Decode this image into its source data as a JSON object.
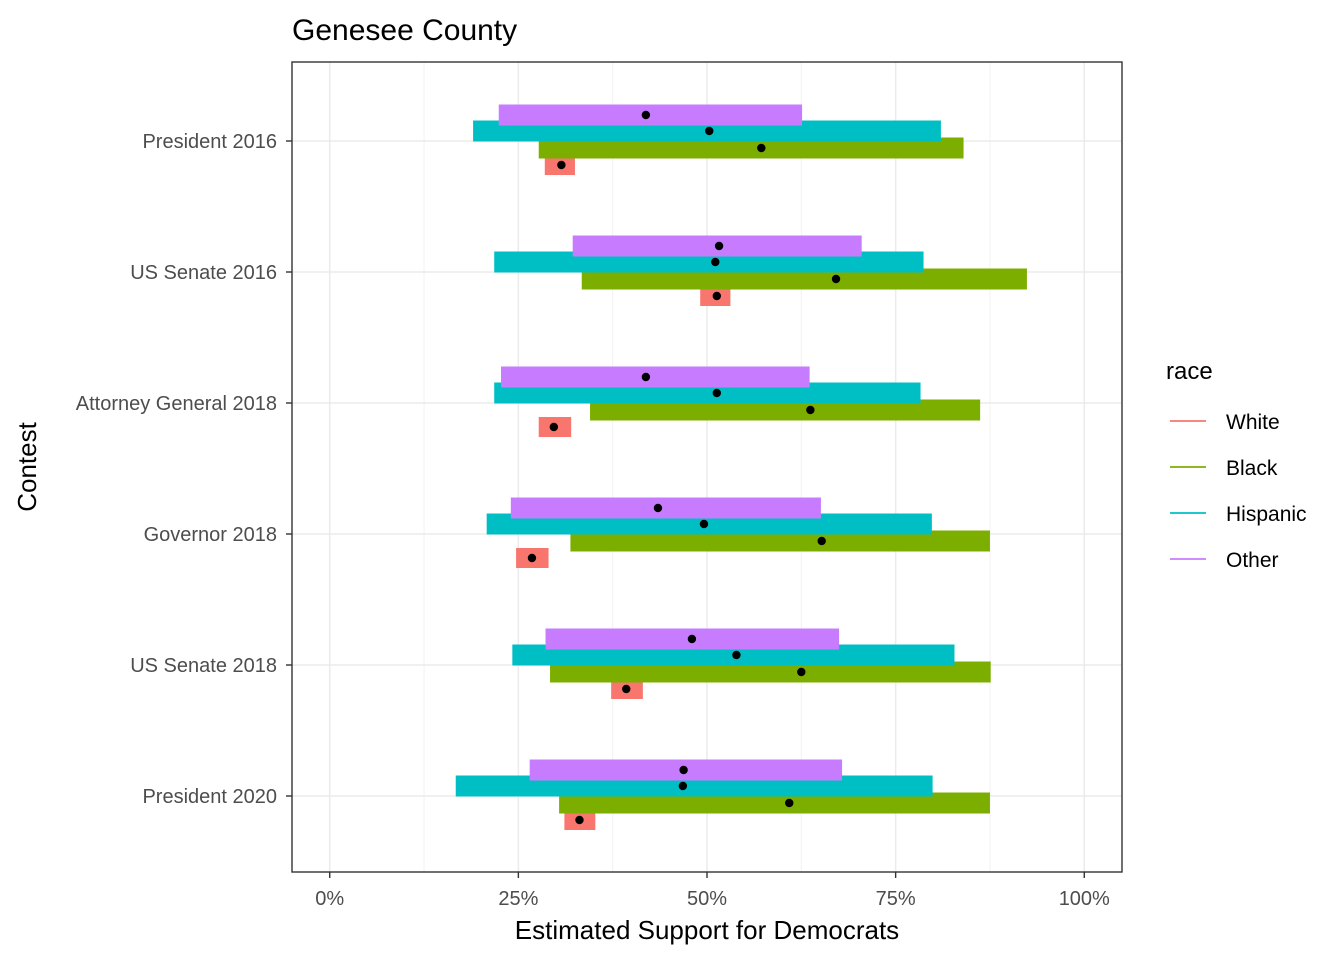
{
  "chart_data": {
    "type": "bar",
    "title": "Genesee County",
    "xlabel": "Estimated Support for Democrats",
    "ylabel": "Contest",
    "xlim": [
      -0.05,
      1.05
    ],
    "x_ticks": [
      {
        "value": 0,
        "label": "0%"
      },
      {
        "value": 0.25,
        "label": "25%"
      },
      {
        "value": 0.5,
        "label": "50%"
      },
      {
        "value": 0.75,
        "label": "75%"
      },
      {
        "value": 1,
        "label": "100%"
      }
    ],
    "grid": true,
    "legend": {
      "title": "race",
      "placement": "right",
      "entries": [
        {
          "name": "White",
          "color": "#F8766D"
        },
        {
          "name": "Black",
          "color": "#7CAE00"
        },
        {
          "name": "Hispanic",
          "color": "#00BFC4"
        },
        {
          "name": "Other",
          "color": "#C77CFF"
        }
      ]
    },
    "categories": [
      "President 2016",
      "US Senate 2016",
      "Attorney General 2018",
      "Governor 2018",
      "US Senate 2018",
      "President 2020"
    ],
    "series": [
      {
        "name": "White",
        "color": "#F8766D",
        "estimate": [
          0.307,
          0.513,
          0.297,
          0.268,
          0.393,
          0.331
        ],
        "low": [
          0.285,
          0.491,
          0.277,
          0.247,
          0.373,
          0.311
        ],
        "high": [
          0.325,
          0.531,
          0.32,
          0.29,
          0.415,
          0.352
        ]
      },
      {
        "name": "Black",
        "color": "#7CAE00",
        "estimate": [
          0.572,
          0.671,
          0.637,
          0.652,
          0.625,
          0.609
        ],
        "low": [
          0.277,
          0.334,
          0.345,
          0.319,
          0.292,
          0.304
        ],
        "high": [
          0.84,
          0.924,
          0.862,
          0.875,
          0.876,
          0.875
        ]
      },
      {
        "name": "Hispanic",
        "color": "#00BFC4",
        "estimate": [
          0.503,
          0.511,
          0.513,
          0.496,
          0.539,
          0.468
        ],
        "low": [
          0.19,
          0.218,
          0.218,
          0.208,
          0.242,
          0.167
        ],
        "high": [
          0.81,
          0.787,
          0.783,
          0.798,
          0.828,
          0.799
        ]
      },
      {
        "name": "Other",
        "color": "#C77CFF",
        "estimate": [
          0.419,
          0.516,
          0.419,
          0.435,
          0.48,
          0.469
        ],
        "low": [
          0.224,
          0.322,
          0.227,
          0.24,
          0.286,
          0.265
        ],
        "high": [
          0.626,
          0.705,
          0.636,
          0.651,
          0.675,
          0.679
        ]
      }
    ]
  }
}
